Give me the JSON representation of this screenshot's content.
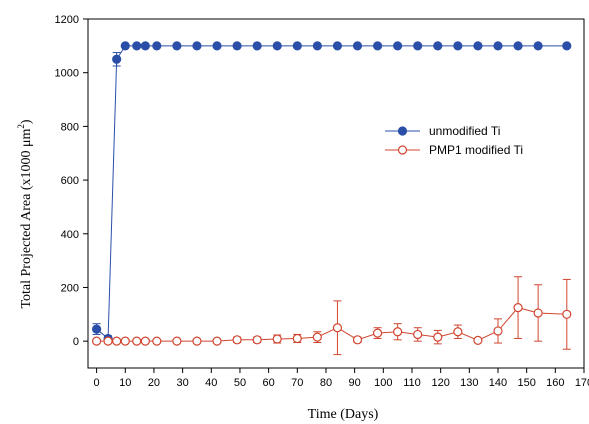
{
  "chart_data": {
    "type": "line",
    "title": "",
    "xlabel": "Time (Days)",
    "ylabel_main": "Total Projected Area (x1000 μm",
    "ylabel_sup": "2",
    "ylabel_close": ")",
    "xlim": [
      -3,
      170
    ],
    "ylim": [
      -100,
      1200
    ],
    "xticks": [
      0,
      10,
      20,
      30,
      40,
      50,
      60,
      70,
      80,
      90,
      100,
      110,
      120,
      130,
      140,
      150,
      160,
      170
    ],
    "yticks": [
      0,
      200,
      400,
      600,
      800,
      1000,
      1200
    ],
    "grid": false,
    "legend_position": "center-right",
    "series": [
      {
        "name": "unmodified Ti",
        "color": "#2b4fa8",
        "marker": "filled-circle",
        "x": [
          0,
          4,
          7,
          10,
          14,
          17,
          21,
          28,
          35,
          42,
          49,
          56,
          63,
          70,
          77,
          84,
          91,
          98,
          105,
          112,
          119,
          126,
          133,
          140,
          147,
          154,
          164
        ],
        "y": [
          45,
          10,
          1050,
          1100,
          1100,
          1100,
          1100,
          1100,
          1100,
          1100,
          1100,
          1100,
          1100,
          1100,
          1100,
          1100,
          1100,
          1100,
          1100,
          1100,
          1100,
          1100,
          1100,
          1100,
          1100,
          1100,
          1100
        ],
        "err": [
          20,
          10,
          25,
          0,
          0,
          0,
          0,
          0,
          0,
          0,
          0,
          0,
          0,
          0,
          0,
          0,
          0,
          0,
          0,
          0,
          0,
          0,
          0,
          0,
          0,
          0,
          0
        ]
      },
      {
        "name": "PMP1 modified Ti",
        "color": "#d0452f",
        "marker": "open-circle",
        "x": [
          0,
          4,
          7,
          10,
          14,
          17,
          21,
          28,
          35,
          42,
          49,
          56,
          63,
          70,
          77,
          84,
          91,
          98,
          105,
          112,
          119,
          126,
          133,
          140,
          147,
          154,
          164
        ],
        "y": [
          0,
          0,
          0,
          0,
          0,
          0,
          0,
          0,
          0,
          0,
          5,
          5,
          8,
          10,
          15,
          50,
          5,
          30,
          35,
          25,
          15,
          35,
          3,
          38,
          125,
          105,
          100
        ],
        "err": [
          0,
          0,
          0,
          0,
          0,
          0,
          0,
          0,
          0,
          0,
          10,
          10,
          15,
          15,
          20,
          100,
          10,
          20,
          30,
          25,
          25,
          25,
          5,
          45,
          115,
          105,
          130
        ]
      }
    ]
  }
}
